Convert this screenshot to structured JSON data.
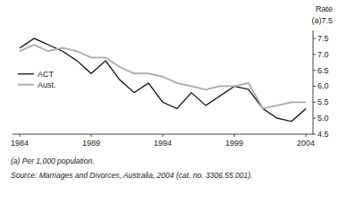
{
  "chart_data": {
    "type": "line",
    "y_label": "Rate",
    "annotations": [
      "(a)7.5",
      "(a) Per 1,000 population.",
      "Source: Marriages and Divorces, Australia, 2004 (cat. no. 3306.55.001)."
    ],
    "x": [
      1984,
      1985,
      1986,
      1987,
      1988,
      1989,
      1990,
      1991,
      1992,
      1993,
      1994,
      1995,
      1996,
      1997,
      1998,
      1999,
      2000,
      2001,
      2002,
      2003,
      2004
    ],
    "series": [
      {
        "name": "ACT",
        "color": "#000000",
        "values": [
          7.2,
          7.5,
          7.3,
          7.1,
          6.8,
          6.4,
          6.8,
          6.2,
          5.8,
          6.1,
          5.5,
          5.3,
          5.8,
          5.4,
          5.7,
          6.0,
          5.9,
          5.3,
          5.0,
          4.9,
          5.3
        ]
      },
      {
        "name": "Aust.",
        "color": "#aaaaaa",
        "values": [
          7.1,
          7.3,
          7.1,
          7.2,
          7.1,
          6.9,
          6.9,
          6.6,
          6.4,
          6.4,
          6.3,
          6.1,
          6.0,
          5.9,
          6.0,
          6.0,
          6.1,
          5.3,
          5.4,
          5.5,
          5.5
        ]
      }
    ],
    "xlim": [
      1983.5,
      2004.5
    ],
    "xticks": [
      1984,
      1989,
      1994,
      1999,
      2004
    ],
    "ylim": [
      4.5,
      7.75
    ],
    "yticks": [
      4.5,
      {
        "value": 5.0,
        "label": "5.0"
      },
      5.5,
      {
        "value": 6.0,
        "label": "6.0"
      },
      6.5,
      {
        "value": 7.0,
        "label": "7.0"
      },
      7.5
    ],
    "grid": false,
    "legend": "left"
  }
}
